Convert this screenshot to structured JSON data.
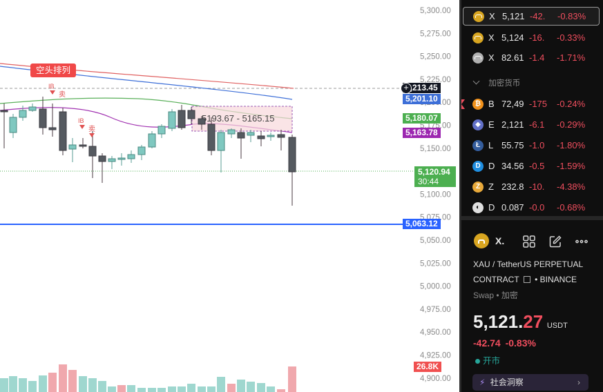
{
  "chart": {
    "price_axis": [
      "5,300.00",
      "5,275.00",
      "5,250.00",
      "5,225.00",
      "5,200.00",
      "5,175.00",
      "5,150.00",
      "5,125.00",
      "5,100.00",
      "5,075.00",
      "5,050.00",
      "5,025.00",
      "5,000.00",
      "4,975.00",
      "4,950.00",
      "4,925.00",
      "4,900.00"
    ],
    "crosshair_price": "5,213.45",
    "labels": {
      "ma1": "5,201.10",
      "ma2": "5,180.07",
      "ma3": "5,163.78",
      "last_price": "5,120.94",
      "countdown": "30:44",
      "hline_price": "5,063.12",
      "volume": "26.8K"
    },
    "range_box_text": "5193.67 - 5165.15",
    "bear_pattern_label": "空头排列",
    "signals": [
      {
        "tag": "IB",
        "text": "卖"
      },
      {
        "tag": "IB",
        "text": "卖"
      }
    ],
    "colors": {
      "up": "#7fc8c0",
      "down": "#b26a72",
      "ma_blue": "#3d6fd8",
      "ma_green": "#5ab05a",
      "ma_purple": "#a030b0",
      "ma_red": "#e06060"
    }
  },
  "watchlist": [
    {
      "sym": "X",
      "last": "5,121",
      "chg": "-42.",
      "pct": "-0.83%",
      "icon": "gold-bar-icon",
      "color": "#d8a520",
      "selected": true
    },
    {
      "sym": "X",
      "last": "5,124",
      "chg": "-16.",
      "pct": "-0.33%",
      "icon": "gold-bar-icon",
      "color": "#d8a520"
    },
    {
      "sym": "X",
      "last": "82.61",
      "chg": "-1.4",
      "pct": "-1.71%",
      "icon": "silver-bar-icon",
      "color": "#b0b0b0"
    }
  ],
  "crypto_section": {
    "title": "加密货币"
  },
  "crypto": [
    {
      "sym": "B",
      "last": "72,49",
      "chg": "-175",
      "pct": "-0.24%",
      "icon": "bitcoin-icon",
      "glyph": "₿",
      "color": "#f2921b"
    },
    {
      "sym": "E",
      "last": "2,121",
      "chg": "-6.1",
      "pct": "-0.29%",
      "icon": "ethereum-icon",
      "glyph": "◆",
      "color": "#6270c8"
    },
    {
      "sym": "L",
      "last": "55.75",
      "chg": "-1.0",
      "pct": "-1.80%",
      "icon": "litecoin-icon",
      "glyph": "Ł",
      "color": "#345d9d"
    },
    {
      "sym": "D",
      "last": "34.56",
      "chg": "-0.5",
      "pct": "-1.59%",
      "icon": "dash-icon",
      "glyph": "D",
      "color": "#1f8ee0"
    },
    {
      "sym": "Z",
      "last": "232.8",
      "chg": "-10.",
      "pct": "-4.38%",
      "icon": "zcash-icon",
      "glyph": "Z",
      "color": "#e8a93a"
    },
    {
      "sym": "D",
      "last": "0.087",
      "chg": "-0.0",
      "pct": "-0.68%",
      "icon": "dogecoin-icon",
      "glyph": "◐",
      "color": "#e0e0e0"
    }
  ],
  "details": {
    "short_symbol": "X.",
    "name_line1": "XAU / TetherUS PERPETUAL",
    "name_line2": "CONTRACT",
    "exchange": "• BINANCE",
    "type": "Swap",
    "type_tag": "• 加密",
    "price_main": "5,121.",
    "price_dec": "27",
    "currency": "USDT",
    "change": "-42.74",
    "change_pct": "-0.83%",
    "status": "开市",
    "community_button": "社会洞察"
  }
}
